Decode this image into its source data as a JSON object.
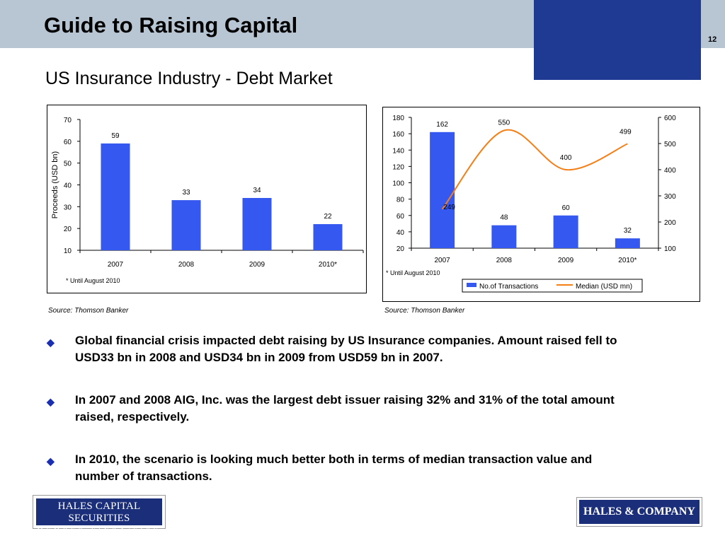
{
  "header": {
    "title": "Guide to Raising Capital",
    "page_number": "12"
  },
  "subtitle": "US Insurance Industry - Debt Market",
  "chart_data": [
    {
      "type": "bar",
      "categories": [
        "2007",
        "2008",
        "2009",
        "2010*"
      ],
      "values": [
        59,
        33,
        34,
        22
      ],
      "data_labels": [
        "59",
        "33",
        "34",
        "22"
      ],
      "title": "",
      "xlabel": "",
      "ylabel": "Proceeds (USD bn)",
      "ylim": [
        10,
        70
      ],
      "yticks": [
        "10",
        "20",
        "30",
        "40",
        "50",
        "60",
        "70"
      ],
      "bar_color": "#3559f0",
      "grid": false,
      "note": "* Until August 2010"
    },
    {
      "type": "bar",
      "categories": [
        "2007",
        "2008",
        "2009",
        "2010*"
      ],
      "series": [
        {
          "name": "No.of Transactions",
          "type": "bar",
          "axis": "left",
          "values": [
            162,
            48,
            60,
            32
          ],
          "labels": [
            "162",
            "48",
            "60",
            "32"
          ],
          "color": "#3559f0"
        },
        {
          "name": "Median (USD mn)",
          "type": "line",
          "axis": "right",
          "values": [
            249,
            550,
            400,
            499
          ],
          "labels": [
            "249",
            "550",
            "400",
            "499"
          ],
          "color": "#f57f17"
        }
      ],
      "ylim": [
        20,
        180
      ],
      "yticks": [
        "20",
        "40",
        "60",
        "80",
        "100",
        "120",
        "140",
        "160",
        "180"
      ],
      "y2lim": [
        100,
        600
      ],
      "y2ticks": [
        "100",
        "200",
        "300",
        "400",
        "500",
        "600"
      ],
      "legend_position": "bottom",
      "grid": false,
      "note": "* Until August 2010"
    }
  ],
  "sources": {
    "left": "Source: Thomson Banker",
    "right": "Source: Thomson Banker"
  },
  "bullets": [
    "Global financial crisis impacted debt raising by US Insurance companies. Amount raised fell to USD33 bn in 2008 and USD34 bn in 2009 from USD59 bn in 2007.",
    "In 2007 and 2008 AIG, Inc. was the largest debt issuer raising 32% and 31% of the total amount raised, respectively.",
    "In 2010, the scenario is looking much better both in terms of median transaction value and number of transactions."
  ],
  "bullet_icon": "diamond-icon",
  "logos": {
    "left_line1": "HALES CAPITAL SECURITIES",
    "left_line2": "MEMBER FINRA/SIPC",
    "right": "HALES & COMPANY"
  },
  "colors": {
    "header_band": "#b8c5d3",
    "accent_block": "#1f3a93",
    "logo_navy": "#1b2e7a",
    "bullet": "#1a2fb0"
  }
}
